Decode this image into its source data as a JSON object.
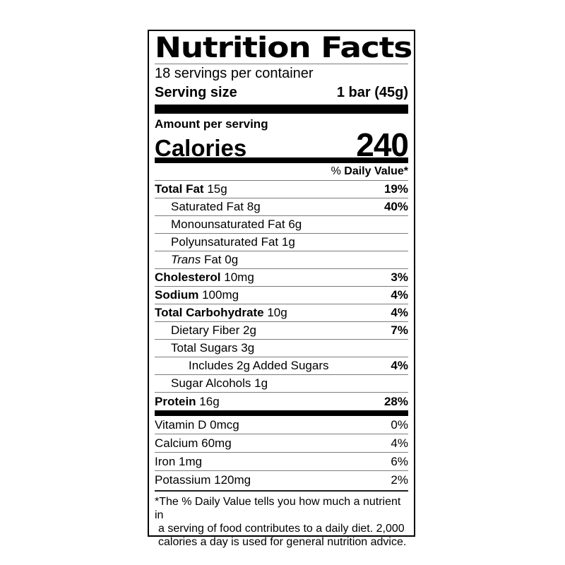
{
  "colors": {
    "ink": "#000000",
    "hairline": "#7c7c7c",
    "background": "#ffffff"
  },
  "label": {
    "title": "Nutrition Facts",
    "servings_per_container": "18 servings per container",
    "serving_size": {
      "label": "Serving size",
      "value": "1 bar (45g)"
    },
    "amount_per_serving": "Amount per serving",
    "calories": {
      "label": "Calories",
      "value": "240"
    },
    "daily_value_header": {
      "percent": "%",
      "label": "Daily Value*"
    },
    "rows": [
      {
        "name": "Total Fat",
        "amount": "15g",
        "dv": "19%"
      },
      {
        "name": "Saturated Fat",
        "amount": "8g",
        "dv": "40%"
      },
      {
        "name": "Monounsaturated Fat",
        "amount": "6g",
        "dv": ""
      },
      {
        "name": "Polyunsaturated Fat",
        "amount": "1g",
        "dv": ""
      },
      {
        "name_italic": "Trans",
        "name": "Fat",
        "amount": "0g",
        "dv": ""
      },
      {
        "name": "Cholesterol",
        "amount": "10mg",
        "dv": "3%"
      },
      {
        "name": "Sodium",
        "amount": "100mg",
        "dv": "4%"
      },
      {
        "name": "Total Carbohydrate",
        "amount": "10g",
        "dv": "4%"
      },
      {
        "name": "Dietary Fiber",
        "amount": "2g",
        "dv": "7%"
      },
      {
        "name": "Total Sugars",
        "amount": "3g",
        "dv": ""
      },
      {
        "name": "Includes 2g Added Sugars",
        "amount": "",
        "dv": "4%"
      },
      {
        "name": "Sugar Alcohols",
        "amount": "1g",
        "dv": ""
      },
      {
        "name": "Protein",
        "amount": "16g",
        "dv": "28%"
      }
    ],
    "vitamins": [
      {
        "name": "Vitamin D",
        "amount": "0mcg",
        "dv": "0%"
      },
      {
        "name": "Calcium",
        "amount": "60mg",
        "dv": "4%"
      },
      {
        "name": "Iron",
        "amount": "1mg",
        "dv": "6%"
      },
      {
        "name": "Potassium",
        "amount": "120mg",
        "dv": "2%"
      }
    ],
    "footnote_lines": [
      "*The % Daily Value tells you how much a nutrient in",
      "a serving of food contributes to a daily diet. 2,000",
      "calories a day is used for general nutrition advice."
    ]
  }
}
